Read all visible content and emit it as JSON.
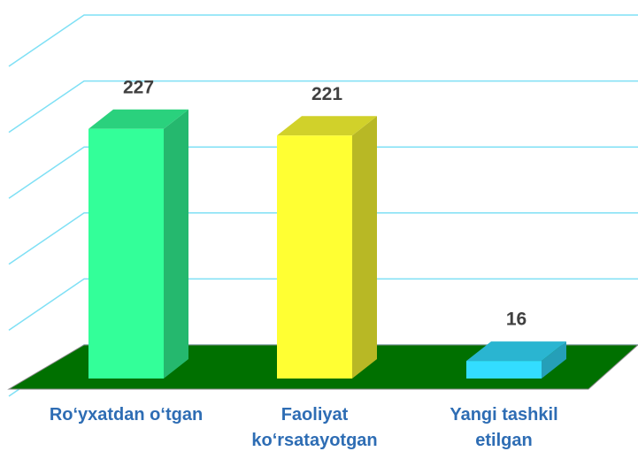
{
  "chart_data": {
    "type": "bar3d",
    "categories": [
      "Ro‘yxatdan o‘tgan",
      "Faoliyat ko‘rsatayotgan",
      "Yangi tashkil etilgan"
    ],
    "values": [
      227,
      221,
      16
    ],
    "colors": [
      "#33ff99",
      "#ffff33",
      "#33ddff"
    ],
    "ylim": [
      0,
      300
    ],
    "yticks": [
      0,
      60,
      120,
      180,
      240,
      300
    ],
    "grid": true
  }
}
